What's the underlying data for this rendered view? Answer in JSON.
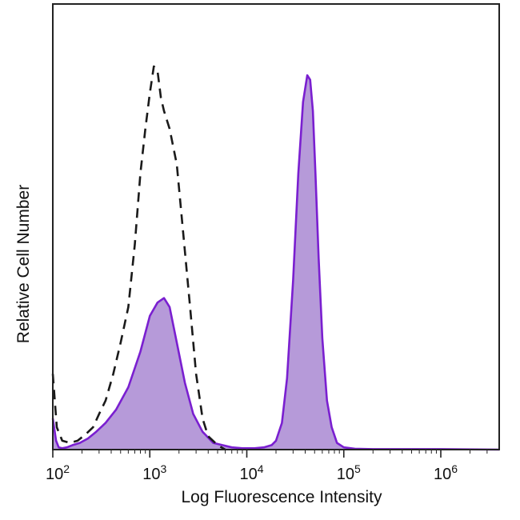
{
  "chart_data": {
    "type": "area",
    "xlabel": "Log Fluorescence Intensity",
    "ylabel": "Relative Cell Number",
    "x_scale": "log",
    "xlim": [
      100,
      4000000
    ],
    "ylim": [
      0,
      100
    ],
    "grid": false,
    "legend": "none",
    "x_ticks": [
      {
        "value": 100,
        "base": "10",
        "exp": "2"
      },
      {
        "value": 1000,
        "base": "10",
        "exp": "3"
      },
      {
        "value": 10000,
        "base": "10",
        "exp": "4"
      },
      {
        "value": 100000,
        "base": "10",
        "exp": "5"
      },
      {
        "value": 1000000,
        "base": "10",
        "exp": "6"
      }
    ],
    "colors": {
      "stained_fill": "#b69ad9",
      "stained_line": "#7a1fd0",
      "control_line": "#1a1a1a",
      "frame": "#222222"
    },
    "series": [
      {
        "style": "filled-solid",
        "x": [
          100,
          108,
          115,
          125,
          140,
          160,
          190,
          230,
          280,
          350,
          450,
          600,
          800,
          1000,
          1200,
          1400,
          1600,
          1900,
          2300,
          2800,
          3500,
          4500,
          5600,
          7000,
          9000,
          12000,
          15000,
          18000,
          20000,
          23000,
          26000,
          30000,
          34000,
          38000,
          42000,
          45000,
          48000,
          51000,
          55000,
          60000,
          67000,
          75000,
          85000,
          100000,
          130000,
          200000,
          500000,
          1000000,
          4000000
        ],
        "values": [
          7,
          2,
          0.5,
          0.3,
          0.5,
          1,
          1.5,
          2.5,
          4,
          6,
          9,
          14,
          22,
          30,
          33,
          34,
          32,
          24,
          15,
          8,
          4,
          1.5,
          1,
          0.5,
          0.3,
          0.3,
          0.5,
          1,
          2,
          6,
          16,
          38,
          62,
          78,
          84,
          83,
          76,
          62,
          43,
          25,
          11,
          5,
          1.5,
          0.5,
          0.2,
          0.1,
          0.1,
          0.1,
          0
        ]
      },
      {
        "style": "dashed",
        "x": [
          100,
          110,
          125,
          150,
          180,
          220,
          260,
          300,
          350,
          420,
          500,
          600,
          700,
          800,
          900,
          1000,
          1100,
          1200,
          1300,
          1400,
          1600,
          1900,
          2200,
          2600,
          3000,
          3500,
          4000,
          5000,
          6000
        ],
        "values": [
          17,
          5,
          2,
          1.5,
          2,
          3.5,
          5,
          8,
          11,
          17,
          24,
          32,
          46,
          62,
          72,
          80,
          86,
          85,
          79,
          76,
          72,
          64,
          49,
          32,
          17,
          7,
          3,
          1,
          0
        ]
      }
    ]
  }
}
